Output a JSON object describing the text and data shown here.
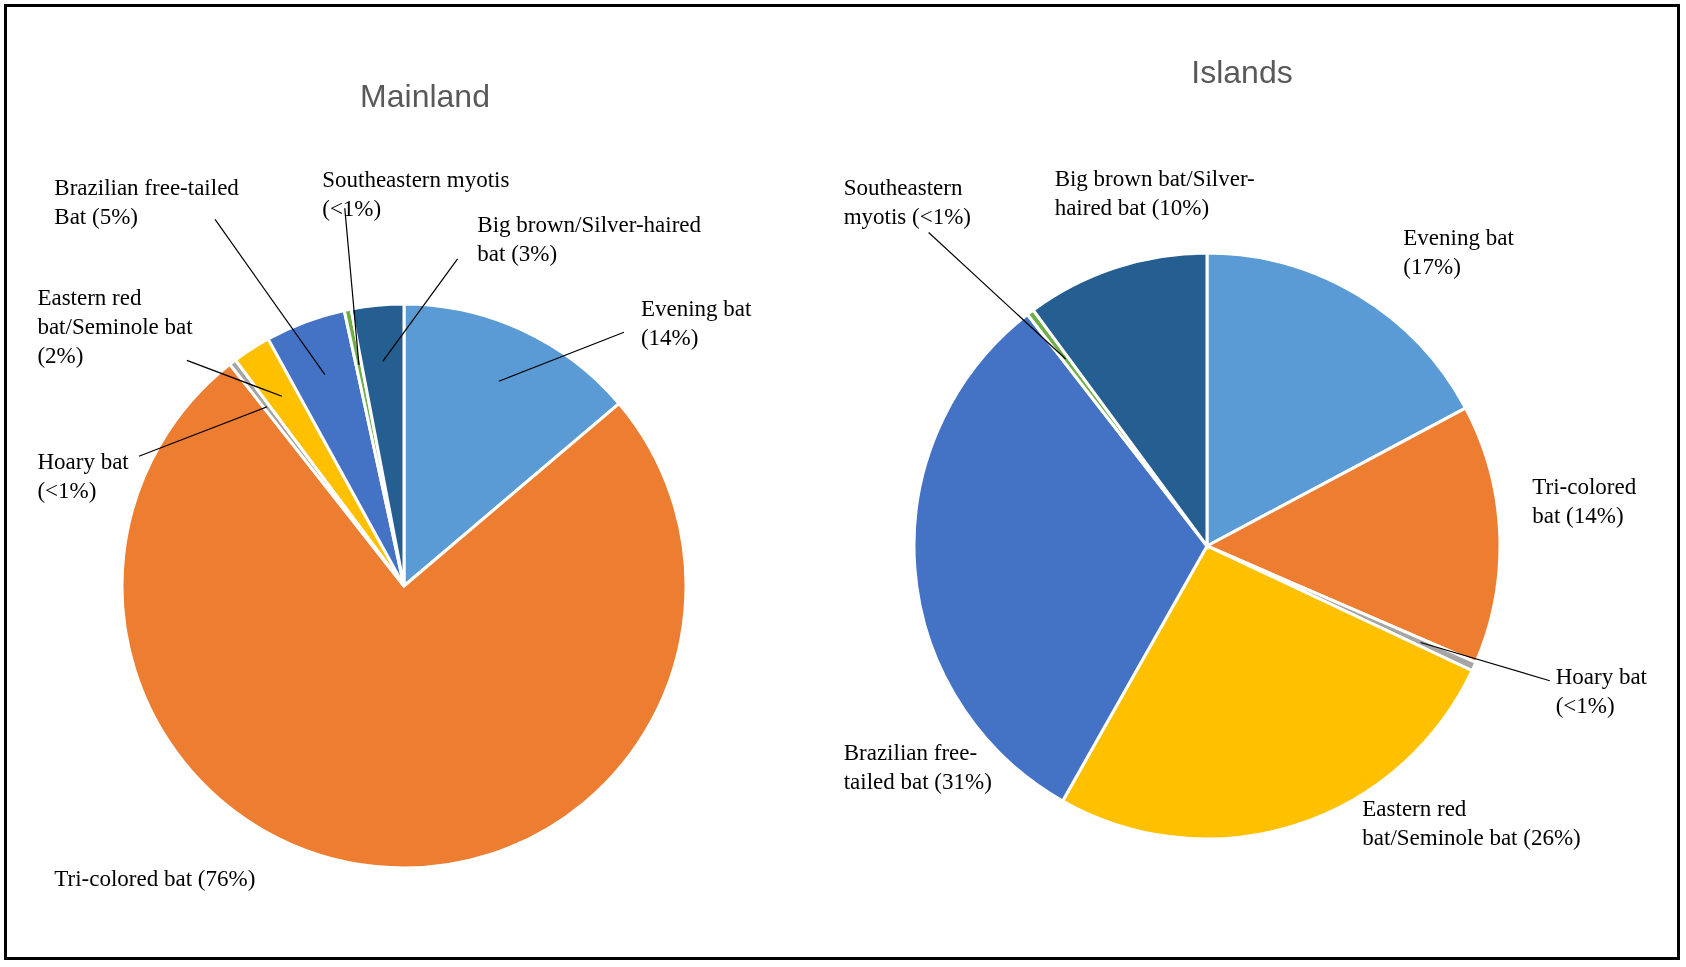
{
  "chart_data": [
    {
      "type": "pie",
      "title": "Mainland",
      "categories": [
        "Evening bat",
        "Tri-colored bat",
        "Hoary bat",
        "Eastern red bat/Seminole bat",
        "Brazilian free-tailed Bat",
        "Southeastern myotis",
        "Big brown/Silver-haired bat"
      ],
      "values": [
        13.8,
        75.6,
        0.4,
        2.2,
        4.6,
        0.4,
        3.0
      ],
      "value_labels": [
        "(14%)",
        "(76%)",
        "(<1%)",
        "(2%)",
        "(5%)",
        "(<1%)",
        "(3%)"
      ],
      "colors": [
        "#5b9bd5",
        "#ed7d31",
        "#a5a5a5",
        "#ffc000",
        "#4472c4",
        "#70ad47",
        "#255e91"
      ],
      "legend": false
    },
    {
      "type": "pie",
      "title": "Islands",
      "categories": [
        "Evening bat",
        "Tri-colored bat",
        "Hoary bat",
        "Eastern red bat/Seminole bat",
        "Brazilian free-tailed bat",
        "Southeastern myotis",
        "Big brown bat/Silver-haired bat"
      ],
      "values": [
        17.2,
        14.3,
        0.5,
        26.2,
        31.3,
        0.4,
        10.1
      ],
      "value_labels": [
        "(17%)",
        "(14%)",
        "(<1%)",
        "(26%)",
        "(31%)",
        "(<1%)",
        "(10%)"
      ],
      "colors": [
        "#5b9bd5",
        "#ed7d31",
        "#a5a5a5",
        "#ffc000",
        "#4472c4",
        "#70ad47",
        "#255e91"
      ],
      "legend": false
    }
  ]
}
